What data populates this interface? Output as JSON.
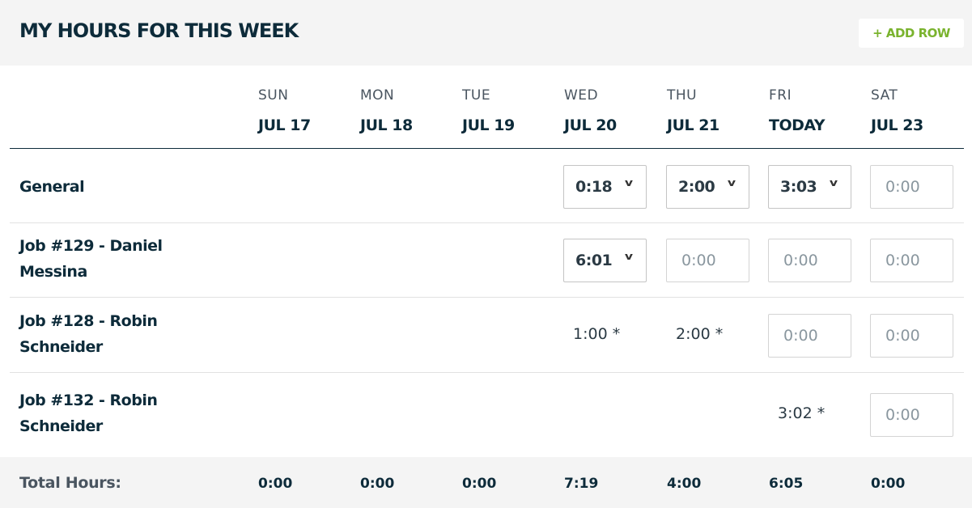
{
  "header": {
    "title": "MY HOURS FOR THIS WEEK",
    "add_row_label": "+ ADD ROW",
    "accent": "#7ab32e"
  },
  "columns": [
    {
      "day": "SUN",
      "date": "JUL 17"
    },
    {
      "day": "MON",
      "date": "JUL 18"
    },
    {
      "day": "TUE",
      "date": "JUL 19"
    },
    {
      "day": "WED",
      "date": "JUL 20"
    },
    {
      "day": "THU",
      "date": "JUL 21"
    },
    {
      "day": "FRI",
      "date": "TODAY"
    },
    {
      "day": "SAT",
      "date": "JUL 23"
    }
  ],
  "rows": [
    {
      "label": "General",
      "cells": [
        {
          "type": "empty"
        },
        {
          "type": "empty"
        },
        {
          "type": "empty"
        },
        {
          "type": "select",
          "value": "0:18"
        },
        {
          "type": "select",
          "value": "2:00"
        },
        {
          "type": "select",
          "value": "3:03"
        },
        {
          "type": "input",
          "placeholder": "0:00"
        }
      ]
    },
    {
      "label": "Job #129 - Daniel Messina",
      "cells": [
        {
          "type": "empty"
        },
        {
          "type": "empty"
        },
        {
          "type": "empty"
        },
        {
          "type": "select",
          "value": "6:01"
        },
        {
          "type": "input",
          "placeholder": "0:00"
        },
        {
          "type": "input",
          "placeholder": "0:00"
        },
        {
          "type": "input",
          "placeholder": "0:00"
        }
      ]
    },
    {
      "label": "Job #128 - Robin Schneider",
      "cells": [
        {
          "type": "empty"
        },
        {
          "type": "empty"
        },
        {
          "type": "empty"
        },
        {
          "type": "text",
          "value": "1:00 *"
        },
        {
          "type": "text",
          "value": "2:00 *"
        },
        {
          "type": "input",
          "placeholder": "0:00"
        },
        {
          "type": "input",
          "placeholder": "0:00"
        }
      ]
    },
    {
      "label": "Job #132 - Robin Schneider",
      "cells": [
        {
          "type": "empty"
        },
        {
          "type": "empty"
        },
        {
          "type": "empty"
        },
        {
          "type": "empty"
        },
        {
          "type": "empty"
        },
        {
          "type": "text",
          "value": "3:02 *"
        },
        {
          "type": "input",
          "placeholder": "0:00"
        }
      ]
    }
  ],
  "footer": {
    "label": "Total Hours:",
    "totals": [
      "0:00",
      "0:00",
      "0:00",
      "7:19",
      "4:00",
      "6:05",
      "0:00"
    ]
  }
}
